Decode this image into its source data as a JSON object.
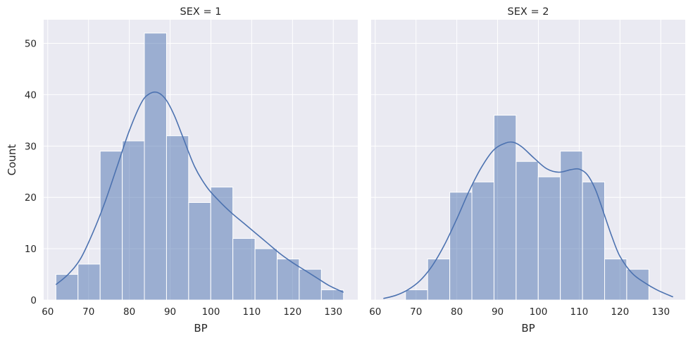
{
  "chart_data": {
    "type": "histogram",
    "style": {
      "background": "#eaeaf2",
      "grid_color": "#ffffff",
      "bar_fill": "#4c72b0",
      "bar_fill_opacity": 0.5,
      "bar_edge": "#ffffff",
      "kde_color": "#4c72b0",
      "grid": true
    },
    "shared_y_label": "Count",
    "xlim": [
      59,
      136
    ],
    "ylim": [
      0,
      54.6
    ],
    "x_ticks": [
      60,
      70,
      80,
      90,
      100,
      110,
      120,
      130
    ],
    "y_ticks": [
      0,
      10,
      20,
      30,
      40,
      50
    ],
    "facets": [
      {
        "title": "SEX = 1",
        "xlabel": "BP",
        "bin_edges": [
          62,
          67.42,
          72.85,
          78.27,
          83.69,
          89.12,
          94.54,
          99.96,
          105.38,
          110.81,
          116.23,
          121.65,
          127.08,
          132.5
        ],
        "counts": [
          5,
          7,
          29,
          31,
          52,
          32,
          19,
          22,
          12,
          10,
          8,
          6,
          2
        ],
        "kde": {
          "x": [
            62,
            65,
            68,
            71,
            74,
            77,
            80,
            83,
            85,
            87,
            89,
            91,
            93,
            96,
            99,
            102,
            105,
            108,
            111,
            114,
            117,
            120,
            123,
            126,
            129,
            132.5
          ],
          "y": [
            3,
            5,
            8,
            13,
            19,
            26,
            33,
            38.5,
            40.2,
            40.4,
            39,
            36,
            32,
            26,
            22,
            19.3,
            17,
            15,
            13,
            11,
            9,
            7.3,
            5.8,
            4.3,
            2.8,
            1.5
          ]
        }
      },
      {
        "title": "SEX = 2",
        "xlabel": "BP",
        "bin_edges": [
          62,
          67.42,
          72.85,
          78.27,
          83.69,
          89.12,
          94.54,
          99.96,
          105.38,
          110.81,
          116.23,
          121.65,
          127.08,
          132.5
        ],
        "counts": [
          0,
          2,
          8,
          21,
          23,
          36,
          27,
          24,
          29,
          23,
          8,
          6,
          0
        ],
        "kde": {
          "x": [
            62,
            65,
            68,
            71,
            74,
            77,
            80,
            83,
            86,
            89,
            92,
            94,
            96,
            99,
            102,
            105,
            108,
            110,
            112,
            114,
            116,
            118,
            120,
            123,
            126,
            129,
            133
          ],
          "y": [
            0.3,
            0.9,
            2,
            3.8,
            6.7,
            10.8,
            15.8,
            21.2,
            25.8,
            29.2,
            30.6,
            30.7,
            29.8,
            27.6,
            25.6,
            24.9,
            25.4,
            25.5,
            24.4,
            21.5,
            17,
            12.4,
            8.5,
            5.2,
            3.4,
            2,
            0.6
          ]
        }
      }
    ]
  }
}
